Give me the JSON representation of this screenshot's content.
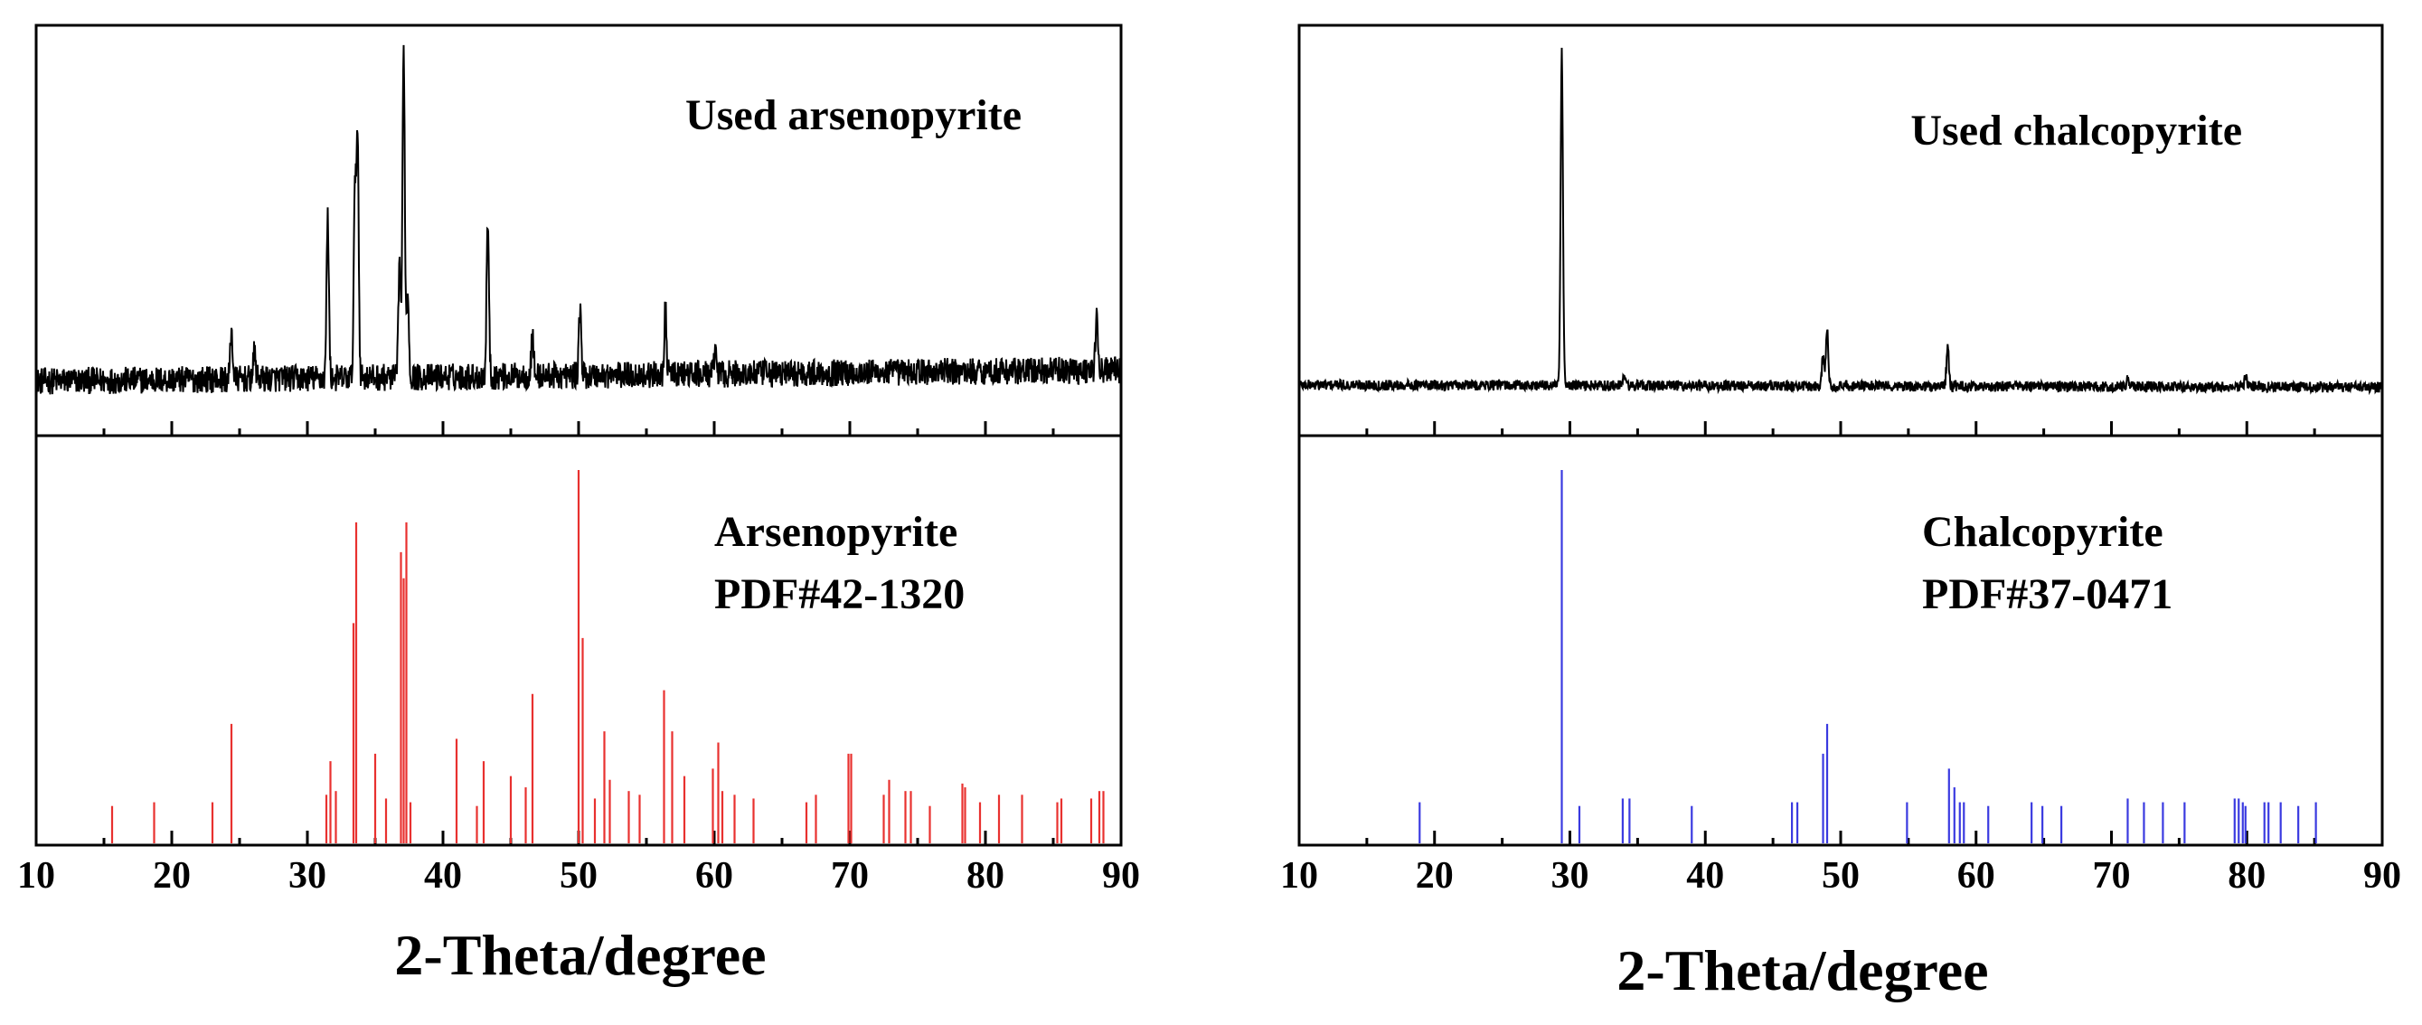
{
  "colors": {
    "axis": "#000000",
    "measured": "#000000",
    "reference_left": "#e8312f",
    "reference_right": "#3a3ae0"
  },
  "chart_data": [
    {
      "type": "line",
      "panel": "left-top",
      "title": "Used arsenopyrite",
      "xlabel": "2-Theta/degree",
      "ylabel": "",
      "xlim": [
        10,
        90
      ],
      "ylim": [
        0,
        100
      ],
      "xticks": [
        10,
        20,
        30,
        40,
        50,
        60,
        70,
        80,
        90
      ],
      "baseline": 13,
      "peaks": [
        {
          "x": 24.4,
          "y": 26
        },
        {
          "x": 26.1,
          "y": 20
        },
        {
          "x": 31.5,
          "y": 56
        },
        {
          "x": 33.5,
          "y": 60
        },
        {
          "x": 33.7,
          "y": 77
        },
        {
          "x": 36.8,
          "y": 43
        },
        {
          "x": 37.1,
          "y": 100
        },
        {
          "x": 37.4,
          "y": 36
        },
        {
          "x": 43.3,
          "y": 55
        },
        {
          "x": 46.6,
          "y": 24
        },
        {
          "x": 50.1,
          "y": 31
        },
        {
          "x": 56.4,
          "y": 30
        },
        {
          "x": 60.1,
          "y": 20
        },
        {
          "x": 88.2,
          "y": 27
        }
      ]
    },
    {
      "type": "bar",
      "panel": "left-bottom",
      "title": "Arsenopyrite",
      "subtitle": "PDF#42-1320",
      "xlabel": "2-Theta/degree",
      "ylabel": "",
      "xlim": [
        10,
        90
      ],
      "ylim": [
        0,
        100
      ],
      "xticks": [
        10,
        20,
        30,
        40,
        50,
        60,
        70,
        80,
        90
      ],
      "x": [
        15.6,
        18.7,
        23.0,
        24.4,
        31.4,
        31.7,
        32.1,
        33.4,
        33.6,
        35.0,
        35.8,
        36.9,
        37.1,
        37.3,
        37.6,
        41.0,
        42.5,
        43.0,
        45.0,
        46.1,
        46.6,
        50.0,
        50.3,
        51.2,
        51.9,
        52.3,
        53.7,
        54.5,
        56.3,
        56.9,
        57.8,
        59.9,
        60.3,
        60.6,
        61.5,
        62.9,
        66.8,
        67.5,
        69.9,
        70.1,
        72.5,
        72.9,
        74.1,
        74.5,
        75.9,
        78.3,
        78.5,
        79.6,
        81.0,
        82.7,
        85.3,
        85.6,
        87.8,
        88.4,
        88.7
      ],
      "values": [
        10,
        11,
        11,
        32,
        13,
        22,
        14,
        59,
        86,
        24,
        12,
        78,
        71,
        86,
        11,
        28,
        10,
        22,
        18,
        15,
        40,
        100,
        55,
        12,
        30,
        17,
        14,
        13,
        41,
        30,
        18,
        20,
        27,
        14,
        13,
        12,
        11,
        13,
        24,
        24,
        13,
        17,
        14,
        14,
        10,
        16,
        15,
        11,
        13,
        13,
        11,
        12,
        12,
        14,
        14
      ]
    },
    {
      "type": "line",
      "panel": "right-top",
      "title": "Used chalcopyrite",
      "xlabel": "2-Theta/degree",
      "ylabel": "",
      "xlim": [
        10,
        90
      ],
      "ylim": [
        0,
        100
      ],
      "xticks": [
        10,
        20,
        30,
        40,
        50,
        60,
        70,
        80,
        90
      ],
      "baseline": 12,
      "peaks": [
        {
          "x": 29.4,
          "y": 100
        },
        {
          "x": 34.0,
          "y": 15
        },
        {
          "x": 48.7,
          "y": 20
        },
        {
          "x": 49.0,
          "y": 27
        },
        {
          "x": 57.9,
          "y": 23
        },
        {
          "x": 71.2,
          "y": 14
        },
        {
          "x": 79.9,
          "y": 15
        }
      ]
    },
    {
      "type": "bar",
      "panel": "right-bottom",
      "title": "Chalcopyrite",
      "subtitle": "PDF#37-0471",
      "xlabel": "2-Theta/degree",
      "ylabel": "",
      "xlim": [
        10,
        90
      ],
      "ylim": [
        0,
        100
      ],
      "xticks": [
        10,
        20,
        30,
        40,
        50,
        60,
        70,
        80,
        90
      ],
      "x": [
        18.9,
        29.4,
        30.7,
        33.9,
        34.4,
        39.0,
        46.4,
        46.8,
        48.7,
        49.0,
        54.9,
        58.0,
        58.4,
        58.8,
        59.1,
        60.9,
        64.1,
        64.9,
        66.3,
        71.2,
        72.4,
        73.8,
        75.4,
        79.1,
        79.4,
        79.7,
        79.9,
        81.3,
        81.6,
        82.5,
        83.8,
        85.1
      ],
      "values": [
        11,
        100,
        10,
        12,
        12,
        10,
        11,
        11,
        24,
        32,
        11,
        20,
        15,
        11,
        11,
        10,
        11,
        10,
        10,
        12,
        11,
        11,
        11,
        12,
        12,
        11,
        10,
        11,
        11,
        11,
        10,
        11
      ]
    }
  ]
}
